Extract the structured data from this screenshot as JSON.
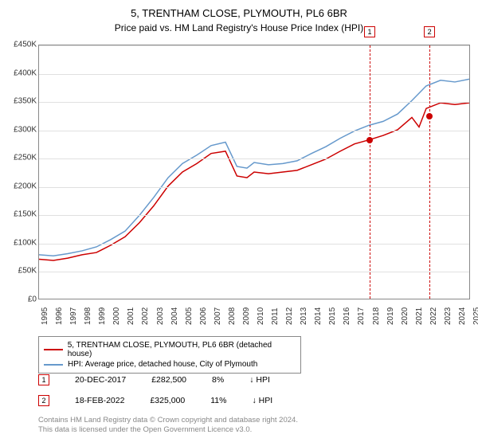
{
  "title": "5, TRENTHAM CLOSE, PLYMOUTH, PL6 6BR",
  "subtitle": "Price paid vs. HM Land Registry's House Price Index (HPI)",
  "chart": {
    "type": "line",
    "background_color": "#ffffff",
    "grid_color": "#e0e0e0",
    "border_color": "#888888",
    "axis_font_size": 10,
    "ylim": [
      0,
      450000
    ],
    "ytick_step": 50000,
    "yticks": [
      "£0",
      "£50K",
      "£100K",
      "£150K",
      "£200K",
      "£250K",
      "£300K",
      "£350K",
      "£400K",
      "£450K"
    ],
    "xlim": [
      1995,
      2025
    ],
    "xticks": [
      1995,
      1996,
      1997,
      1998,
      1999,
      2000,
      2001,
      2002,
      2003,
      2004,
      2005,
      2006,
      2007,
      2008,
      2009,
      2010,
      2011,
      2012,
      2013,
      2014,
      2015,
      2016,
      2017,
      2018,
      2019,
      2020,
      2021,
      2022,
      2023,
      2024,
      2025
    ],
    "series": [
      {
        "label": "5, TRENTHAM CLOSE, PLYMOUTH, PL6 6BR (detached house)",
        "color": "#cc0000",
        "line_width": 1.5,
        "data": [
          [
            1995,
            70000
          ],
          [
            1996,
            68000
          ],
          [
            1997,
            72000
          ],
          [
            1998,
            78000
          ],
          [
            1999,
            82000
          ],
          [
            2000,
            95000
          ],
          [
            2001,
            110000
          ],
          [
            2002,
            135000
          ],
          [
            2003,
            165000
          ],
          [
            2004,
            200000
          ],
          [
            2005,
            225000
          ],
          [
            2006,
            240000
          ],
          [
            2007,
            258000
          ],
          [
            2008,
            262000
          ],
          [
            2008.8,
            218000
          ],
          [
            2009.5,
            215000
          ],
          [
            2010,
            225000
          ],
          [
            2011,
            222000
          ],
          [
            2012,
            225000
          ],
          [
            2013,
            228000
          ],
          [
            2014,
            238000
          ],
          [
            2015,
            248000
          ],
          [
            2016,
            262000
          ],
          [
            2017,
            275000
          ],
          [
            2018,
            282000
          ],
          [
            2019,
            290000
          ],
          [
            2020,
            300000
          ],
          [
            2021,
            322000
          ],
          [
            2021.5,
            305000
          ],
          [
            2022,
            338000
          ],
          [
            2023,
            348000
          ],
          [
            2024,
            345000
          ],
          [
            2025,
            348000
          ]
        ]
      },
      {
        "label": "HPI: Average price, detached house, City of Plymouth",
        "color": "#6699cc",
        "line_width": 1.5,
        "data": [
          [
            1995,
            78000
          ],
          [
            1996,
            76000
          ],
          [
            1997,
            80000
          ],
          [
            1998,
            85000
          ],
          [
            1999,
            92000
          ],
          [
            2000,
            105000
          ],
          [
            2001,
            120000
          ],
          [
            2002,
            148000
          ],
          [
            2003,
            180000
          ],
          [
            2004,
            215000
          ],
          [
            2005,
            240000
          ],
          [
            2006,
            255000
          ],
          [
            2007,
            272000
          ],
          [
            2008,
            278000
          ],
          [
            2008.8,
            235000
          ],
          [
            2009.5,
            232000
          ],
          [
            2010,
            242000
          ],
          [
            2011,
            238000
          ],
          [
            2012,
            240000
          ],
          [
            2013,
            245000
          ],
          [
            2014,
            258000
          ],
          [
            2015,
            270000
          ],
          [
            2016,
            285000
          ],
          [
            2017,
            298000
          ],
          [
            2018,
            308000
          ],
          [
            2019,
            315000
          ],
          [
            2020,
            328000
          ],
          [
            2021,
            352000
          ],
          [
            2022,
            378000
          ],
          [
            2023,
            388000
          ],
          [
            2024,
            385000
          ],
          [
            2025,
            390000
          ]
        ]
      }
    ],
    "markers": [
      {
        "id": "1",
        "x": 2017.97,
        "y": 282500
      },
      {
        "id": "2",
        "x": 2022.13,
        "y": 325000
      }
    ]
  },
  "legend": {
    "border_color": "#888888"
  },
  "marker_table": [
    {
      "id": "1",
      "date": "20-DEC-2017",
      "price": "£282,500",
      "pct": "8%",
      "dir": "↓ HPI"
    },
    {
      "id": "2",
      "date": "18-FEB-2022",
      "price": "£325,000",
      "pct": "11%",
      "dir": "↓ HPI"
    }
  ],
  "footer": {
    "line1": "Contains HM Land Registry data © Crown copyright and database right 2024.",
    "line2": "This data is licensed under the Open Government Licence v3.0."
  }
}
